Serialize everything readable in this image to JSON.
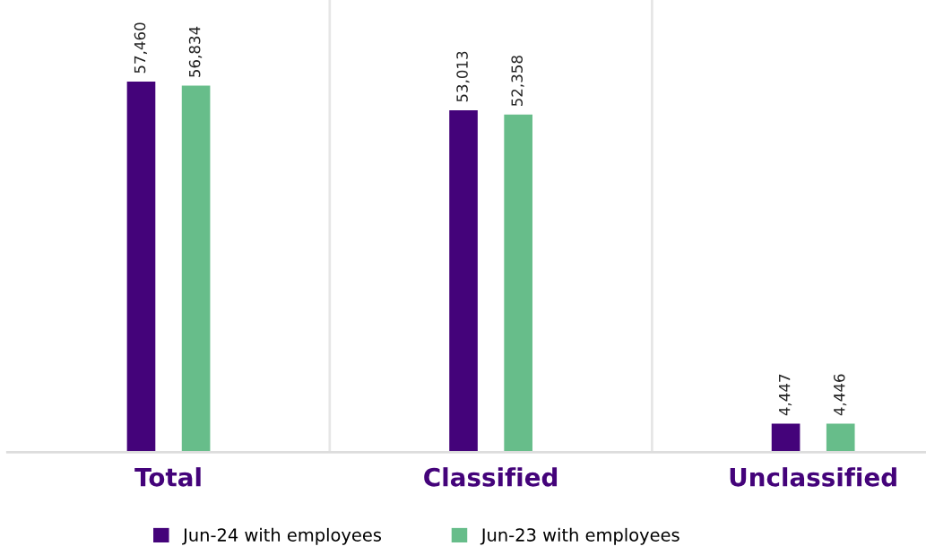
{
  "chart_data": {
    "type": "bar",
    "categories": [
      "Total",
      "Classified",
      "Unclassified"
    ],
    "series": [
      {
        "name": "Jun-24 with employees",
        "color": "#44037a",
        "values": [
          57460,
          53013,
          4447
        ],
        "value_labels": [
          "57,460",
          "53,013",
          "4,447"
        ]
      },
      {
        "name": "Jun-23 with employees",
        "color": "#67bd8a",
        "values": [
          56834,
          52358,
          4446
        ],
        "value_labels": [
          "56,834",
          "52,358",
          "4,446"
        ]
      }
    ],
    "grid": "x",
    "legend": "bottom"
  }
}
